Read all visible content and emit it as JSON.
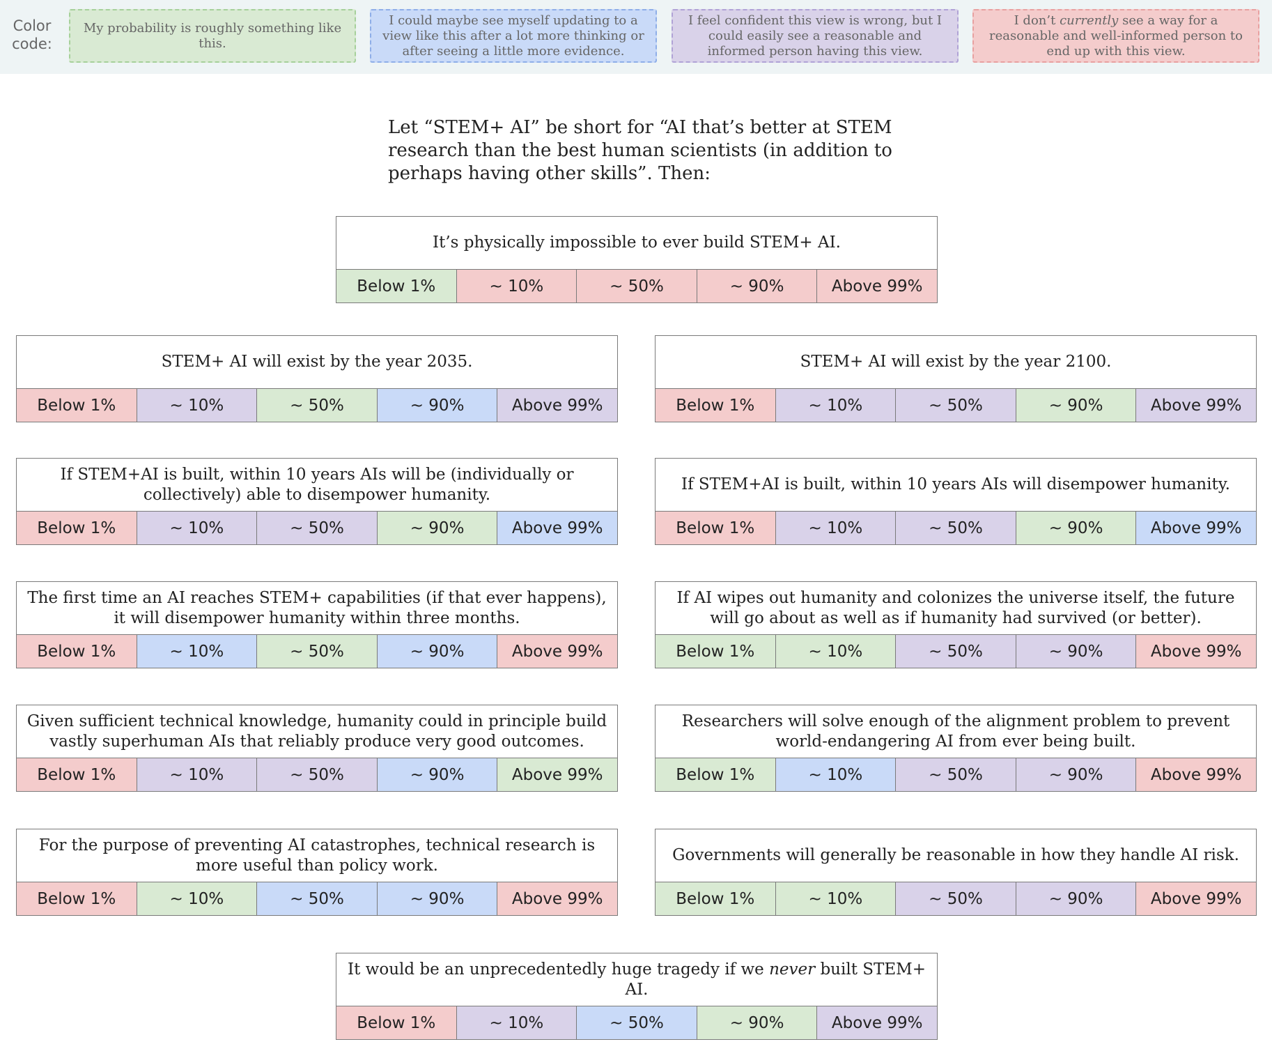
{
  "colors": {
    "green": "#d9ead3",
    "blue": "#c9daf8",
    "purple": "#d9d2e9",
    "red": "#f4cccc",
    "green_border": "#a6d09a",
    "blue_border": "#8eaee8",
    "purple_border": "#b0a2d6",
    "red_border": "#e8a0a0"
  },
  "legend": {
    "title": "Color code:",
    "items": [
      {
        "color": "green",
        "text": "My probability is roughly something like this."
      },
      {
        "color": "blue",
        "text": "I could maybe see myself updating to a view like this after a lot more thinking or after seeing a little more evidence."
      },
      {
        "color": "purple",
        "text": "I feel confident this view is wrong, but I could easily see a reasonable and informed person having this view."
      },
      {
        "color": "red",
        "text_before": "I don’t ",
        "text_em": "currently",
        "text_after": " see a way for a reasonable and well-informed person to end up with this view."
      }
    ]
  },
  "intro": "Let “STEM+ AI” be short for “AI that’s better at STEM research than the best human scientists (in addition to perhaps having other skills”. Then:",
  "option_labels": [
    "Below 1%",
    "~ 10%",
    "~ 50%",
    "~ 90%",
    "Above 99%"
  ],
  "statements": [
    {
      "text": "It’s physically impossible to ever build STEM+ AI.",
      "colors": [
        "green",
        "red",
        "red",
        "red",
        "red"
      ]
    },
    {
      "text": "STEM+ AI will exist by the year 2035.",
      "colors": [
        "red",
        "purple",
        "green",
        "blue",
        "purple"
      ]
    },
    {
      "text": "STEM+ AI will exist by the year 2100.",
      "colors": [
        "red",
        "purple",
        "purple",
        "green",
        "purple"
      ]
    },
    {
      "text": "If STEM+AI is built, within 10 years AIs will be (individually or collectively) able to disempower humanity.",
      "colors": [
        "red",
        "purple",
        "purple",
        "green",
        "blue"
      ]
    },
    {
      "text": "If STEM+AI is built, within 10 years AIs will disempower humanity.",
      "colors": [
        "red",
        "purple",
        "purple",
        "green",
        "blue"
      ]
    },
    {
      "text": "The first time an AI reaches STEM+ capabilities (if that ever happens), it will disempower humanity within three months.",
      "colors": [
        "red",
        "blue",
        "green",
        "blue",
        "red"
      ]
    },
    {
      "text": "If AI wipes out humanity and colonizes the universe itself, the future will go about as well as if humanity had survived (or better).",
      "colors": [
        "green",
        "green",
        "purple",
        "purple",
        "red"
      ]
    },
    {
      "text": "Given sufficient technical knowledge, humanity could in principle build vastly superhuman AIs that reliably produce very good outcomes.",
      "colors": [
        "red",
        "purple",
        "purple",
        "blue",
        "green"
      ]
    },
    {
      "text": "Researchers will solve enough of the alignment problem to prevent world-endangering AI from ever being built.",
      "colors": [
        "green",
        "blue",
        "purple",
        "purple",
        "red"
      ]
    },
    {
      "text": "For the purpose of preventing AI catastrophes, technical research is more useful than policy work.",
      "colors": [
        "red",
        "green",
        "blue",
        "blue",
        "red"
      ]
    },
    {
      "text": "Governments will generally be reasonable in how they handle AI risk.",
      "colors": [
        "green",
        "green",
        "purple",
        "purple",
        "red"
      ]
    },
    {
      "text_before": "It would be an unprecedentedly huge tragedy if we ",
      "text_em": "never",
      "text_after": " built STEM+ AI.",
      "colors": [
        "red",
        "purple",
        "blue",
        "green",
        "purple"
      ]
    }
  ]
}
